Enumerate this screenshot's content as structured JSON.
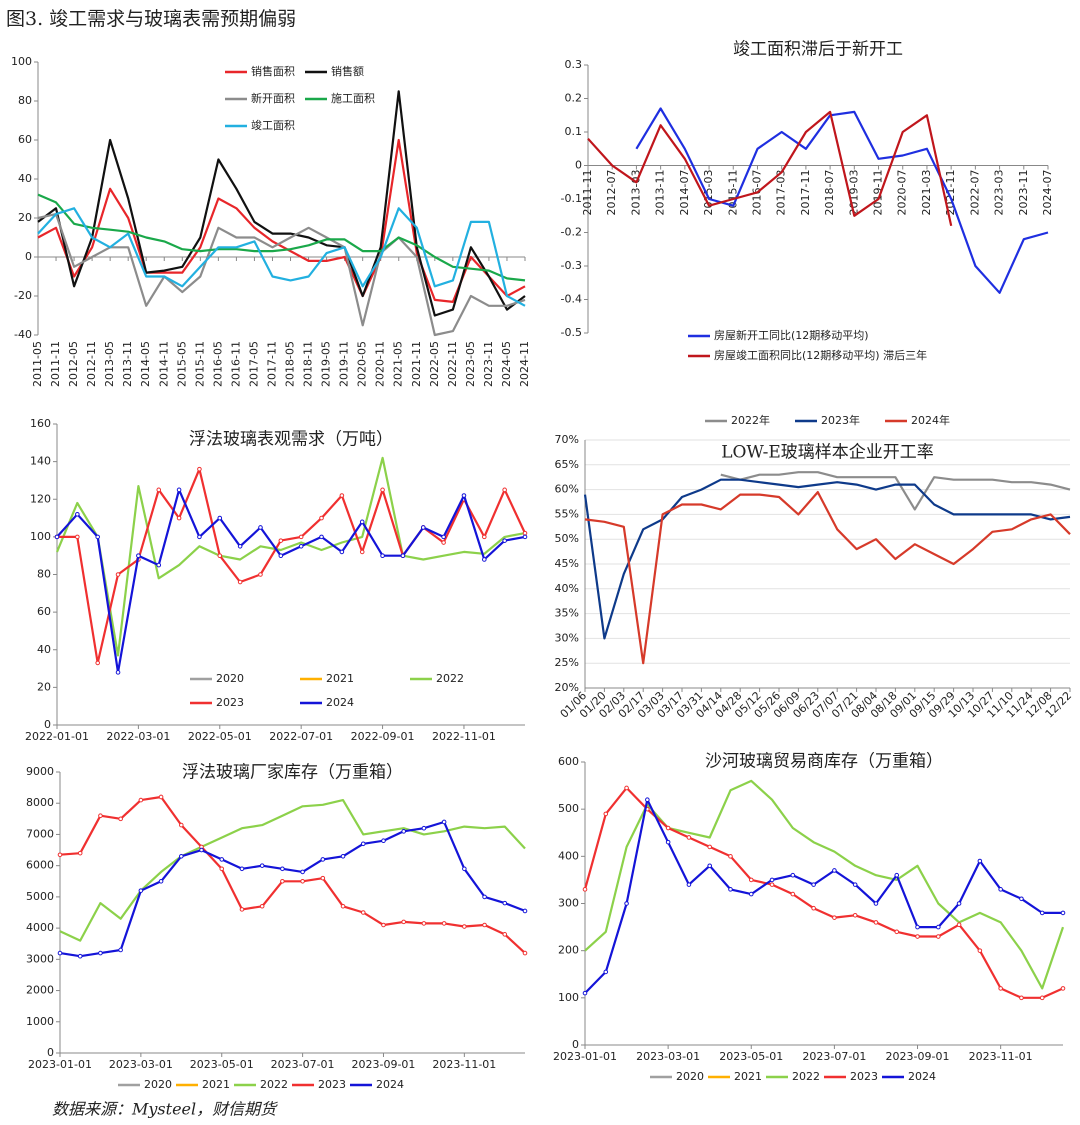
{
  "title": "图3. 竣工需求与玻璃表需预期偏弱",
  "source": "数据来源：Mysteel，财信期货",
  "chart_data": [
    {
      "type": "line",
      "categories": [
        "2011-05",
        "2011-11",
        "2012-05",
        "2012-11",
        "2013-05",
        "2013-11",
        "2014-05",
        "2014-11",
        "2015-05",
        "2015-11",
        "2016-05",
        "2016-11",
        "2017-05",
        "2017-11",
        "2018-05",
        "2018-11",
        "2019-05",
        "2019-11",
        "2020-05",
        "2020-11",
        "2021-05",
        "2021-11",
        "2022-05",
        "2022-11",
        "2023-05",
        "2023-11",
        "2024-05",
        "2024-11"
      ],
      "ylim": [
        -40,
        100
      ],
      "yticks": [
        -40,
        -20,
        0,
        20,
        40,
        60,
        80,
        100
      ],
      "legend": "upper center",
      "series": [
        {
          "name": "销售面积",
          "color": "#e8262a",
          "values": [
            10,
            15,
            -10,
            5,
            35,
            20,
            -8,
            -8,
            -8,
            5,
            30,
            25,
            15,
            8,
            3,
            -2,
            -2,
            0,
            -20,
            0,
            60,
            2,
            -22,
            -23,
            0,
            -10,
            -20,
            -15
          ]
        },
        {
          "name": "销售额",
          "color": "#111111",
          "values": [
            18,
            25,
            -15,
            10,
            60,
            30,
            -8,
            -7,
            -5,
            10,
            50,
            35,
            18,
            12,
            12,
            10,
            6,
            5,
            -20,
            5,
            85,
            5,
            -30,
            -27,
            5,
            -10,
            -27,
            -20
          ]
        },
        {
          "name": "新开面积",
          "color": "#8c8c8c",
          "values": [
            20,
            22,
            -5,
            0,
            5,
            5,
            -25,
            -10,
            -18,
            -10,
            15,
            10,
            10,
            5,
            10,
            15,
            10,
            5,
            -35,
            2,
            10,
            0,
            -40,
            -38,
            -20,
            -25,
            -25,
            -22
          ]
        },
        {
          "name": "施工面积",
          "color": "#1aa84a",
          "values": [
            32,
            28,
            17,
            15,
            14,
            13,
            10,
            8,
            4,
            3,
            4,
            4,
            3,
            3,
            4,
            6,
            9,
            9,
            3,
            3,
            10,
            6,
            0,
            -5,
            -6,
            -7,
            -11,
            -12
          ]
        },
        {
          "name": "竣工面积",
          "color": "#22b0e0",
          "values": [
            12,
            22,
            25,
            10,
            5,
            12,
            -10,
            -10,
            -15,
            -5,
            5,
            5,
            8,
            -10,
            -12,
            -10,
            2,
            5,
            -15,
            0,
            25,
            15,
            -15,
            -12,
            18,
            18,
            -20,
            -25
          ]
        }
      ]
    },
    {
      "type": "line",
      "title": "竣工面积滞后于新开工",
      "categories": [
        "2011-11",
        "2012-07",
        "2013-03",
        "2013-11",
        "2014-07",
        "2015-03",
        "2015-11",
        "2016-07",
        "2017-03",
        "2017-11",
        "2018-07",
        "2019-03",
        "2019-11",
        "2020-07",
        "2021-03",
        "2021-11",
        "2022-07",
        "2023-03",
        "2023-11",
        "2024-07"
      ],
      "ylim": [
        -0.5,
        0.3
      ],
      "yticks": [
        -0.5,
        -0.4,
        -0.3,
        -0.2,
        -0.1,
        0,
        0.1,
        0.2,
        0.3
      ],
      "legend": "lower center",
      "series": [
        {
          "name": "房屋新开工同比(12期移动平均)",
          "color": "#1f2fe0",
          "values": [
            null,
            null,
            0.05,
            0.17,
            0.05,
            -0.1,
            -0.12,
            0.05,
            0.1,
            0.05,
            0.15,
            0.16,
            0.02,
            0.03,
            0.05,
            -0.1,
            -0.3,
            -0.38,
            -0.22,
            -0.2
          ]
        },
        {
          "name": "房屋竣工面积同比(12期移动平均) 滞后三年",
          "color": "#c0161c",
          "values": [
            0.08,
            0.0,
            -0.05,
            0.12,
            0.02,
            -0.12,
            -0.1,
            -0.08,
            -0.02,
            0.1,
            0.16,
            -0.15,
            -0.1,
            0.1,
            0.15,
            -0.18,
            null,
            null,
            null,
            null
          ]
        }
      ]
    },
    {
      "type": "line",
      "title": "浮法玻璃表观需求（万吨）",
      "categories": [
        "2022-01-01",
        null,
        null,
        null,
        "2022-03-01",
        null,
        null,
        null,
        "2022-05-01",
        null,
        null,
        null,
        "2022-07-01",
        null,
        null,
        null,
        "2022-09-01",
        null,
        null,
        null,
        "2022-11-01",
        null,
        null,
        null
      ],
      "ylim": [
        0,
        160
      ],
      "yticks": [
        0,
        20,
        40,
        60,
        80,
        100,
        120,
        140,
        160
      ],
      "legend": "lower center",
      "series": [
        {
          "name": "2020",
          "color": "#a0a0a0",
          "values": [
            null,
            null,
            null,
            null,
            null,
            null,
            null,
            null,
            null,
            null,
            null,
            null,
            null,
            null,
            null,
            null,
            null,
            null,
            null,
            null,
            null,
            null,
            null,
            null
          ]
        },
        {
          "name": "2021",
          "color": "#ffb000",
          "values": [
            null,
            null,
            null,
            null,
            null,
            null,
            null,
            null,
            null,
            null,
            null,
            null,
            null,
            null,
            null,
            null,
            null,
            null,
            null,
            null,
            null,
            null,
            null,
            null
          ]
        },
        {
          "name": "2022",
          "color": "#8cd14a",
          "values": [
            92,
            118,
            100,
            37,
            127,
            78,
            85,
            95,
            90,
            88,
            95,
            93,
            97,
            93,
            97,
            100,
            142,
            90,
            88,
            90,
            92,
            91,
            100,
            102
          ]
        },
        {
          "name": "2023",
          "color": "#f03030",
          "marker": true,
          "values": [
            100,
            100,
            33,
            80,
            88,
            125,
            110,
            136,
            90,
            76,
            80,
            98,
            100,
            110,
            122,
            92,
            125,
            90,
            105,
            97,
            120,
            100,
            125,
            102
          ]
        },
        {
          "name": "2024",
          "color": "#1414d8",
          "marker": true,
          "values": [
            100,
            112,
            100,
            28,
            90,
            85,
            125,
            100,
            110,
            95,
            105,
            90,
            95,
            100,
            92,
            108,
            90,
            90,
            105,
            100,
            122,
            88,
            98,
            100
          ]
        }
      ]
    },
    {
      "type": "line",
      "title": "LOW-E玻璃样本企业开工率",
      "categories": [
        "01/06",
        "01/20",
        "02/03",
        "02/17",
        "03/03",
        "03/17",
        "03/31",
        "04/14",
        "04/28",
        "05/12",
        "05/26",
        "06/09",
        "06/23",
        "07/07",
        "07/21",
        "08/04",
        "08/18",
        "09/01",
        "09/15",
        "09/29",
        "10/13",
        "10/27",
        "11/10",
        "11/24",
        "12/08",
        "12/22"
      ],
      "ylim": [
        20,
        70
      ],
      "yticks": [
        {
          "value": 20,
          "label": "20%"
        },
        {
          "value": 25,
          "label": "25%"
        },
        {
          "value": 30,
          "label": "30%"
        },
        {
          "value": 35,
          "label": "35%"
        },
        {
          "value": 40,
          "label": "40%"
        },
        {
          "value": 45,
          "label": "45%"
        },
        {
          "value": 50,
          "label": "50%"
        },
        {
          "value": 55,
          "label": "55%"
        },
        {
          "value": 60,
          "label": "60%"
        },
        {
          "value": 65,
          "label": "65%"
        },
        {
          "value": 70,
          "label": "70%"
        }
      ],
      "grid": true,
      "legend": "upper center",
      "series": [
        {
          "name": "2022年",
          "color": "#8c8c8c",
          "values": [
            null,
            null,
            null,
            null,
            null,
            null,
            null,
            63,
            62,
            63,
            63,
            63.5,
            63.5,
            62.5,
            62.5,
            62.5,
            62.5,
            56,
            62.5,
            62,
            62,
            62,
            61.5,
            61.5,
            61,
            60
          ]
        },
        {
          "name": "2023年",
          "color": "#0e3a8a",
          "values": [
            59,
            30,
            43,
            52,
            54,
            58.5,
            60,
            62,
            62,
            61.5,
            61,
            60.5,
            61,
            61.5,
            61,
            60,
            61,
            61,
            57,
            55,
            55,
            55,
            55,
            55,
            54,
            54.5
          ]
        },
        {
          "name": "2024年",
          "color": "#d63a2a",
          "values": [
            54,
            53.5,
            52.5,
            25,
            55,
            57,
            57,
            56,
            59,
            59,
            58.5,
            55,
            59.5,
            52,
            48,
            50,
            46,
            49,
            47,
            45,
            48,
            51.5,
            52,
            54,
            55,
            51
          ]
        }
      ]
    },
    {
      "type": "line",
      "title": "浮法玻璃厂家库存（万重箱）",
      "categories": [
        "2023-01-01",
        null,
        null,
        null,
        "2023-03-01",
        null,
        null,
        null,
        "2023-05-01",
        null,
        null,
        null,
        "2023-07-01",
        null,
        null,
        null,
        "2023-09-01",
        null,
        null,
        null,
        "2023-11-01",
        null,
        null,
        null
      ],
      "ylim": [
        0,
        9000
      ],
      "yticks": [
        0,
        1000,
        2000,
        3000,
        4000,
        5000,
        6000,
        7000,
        8000,
        9000
      ],
      "legend": "lower center",
      "series": [
        {
          "name": "2020",
          "color": "#a0a0a0",
          "values": [
            null,
            null,
            null,
            null,
            null,
            null,
            null,
            null,
            null,
            null,
            null,
            null,
            null,
            null,
            null,
            null,
            null,
            null,
            null,
            null,
            null,
            null,
            null,
            null
          ]
        },
        {
          "name": "2021",
          "color": "#ffb000",
          "values": [
            null,
            null,
            null,
            null,
            null,
            null,
            null,
            null,
            null,
            null,
            null,
            null,
            null,
            null,
            null,
            null,
            null,
            null,
            null,
            null,
            null,
            null,
            null,
            null
          ]
        },
        {
          "name": "2022",
          "color": "#8cd14a",
          "values": [
            3900,
            3600,
            4800,
            4300,
            5200,
            5800,
            6300,
            6600,
            6900,
            7200,
            7300,
            7600,
            7900,
            7950,
            8100,
            7000,
            7100,
            7200,
            7000,
            7100,
            7250,
            7200,
            7250,
            6550
          ]
        },
        {
          "name": "2023",
          "color": "#f03030",
          "marker": true,
          "values": [
            6350,
            6400,
            7600,
            7500,
            8100,
            8200,
            7300,
            6600,
            5900,
            4600,
            4700,
            5500,
            5500,
            5600,
            4700,
            4500,
            4100,
            4200,
            4150,
            4150,
            4050,
            4100,
            3800,
            3200
          ]
        },
        {
          "name": "2024",
          "color": "#1414d8",
          "marker": true,
          "values": [
            3200,
            3100,
            3200,
            3300,
            5200,
            5500,
            6300,
            6500,
            6200,
            5900,
            6000,
            5900,
            5800,
            6200,
            6300,
            6700,
            6800,
            7100,
            7200,
            7400,
            5900,
            5000,
            4800,
            4550
          ]
        }
      ]
    },
    {
      "type": "line",
      "title": "沙河玻璃贸易商库存（万重箱）",
      "categories": [
        "2023-01-01",
        null,
        null,
        null,
        "2023-03-01",
        null,
        null,
        null,
        "2023-05-01",
        null,
        null,
        null,
        "2023-07-01",
        null,
        null,
        null,
        "2023-09-01",
        null,
        null,
        null,
        "2023-11-01",
        null,
        null,
        null
      ],
      "ylim": [
        0,
        600
      ],
      "yticks": [
        0,
        100,
        200,
        300,
        400,
        500,
        600
      ],
      "legend": "lower center",
      "series": [
        {
          "name": "2020",
          "color": "#a0a0a0",
          "values": [
            null,
            null,
            null,
            null,
            null,
            null,
            null,
            null,
            null,
            null,
            null,
            null,
            null,
            null,
            null,
            null,
            null,
            null,
            null,
            null,
            null,
            null,
            null,
            null
          ]
        },
        {
          "name": "2021",
          "color": "#ffb000",
          "values": [
            null,
            null,
            null,
            null,
            null,
            null,
            null,
            null,
            null,
            null,
            null,
            null,
            null,
            null,
            null,
            null,
            null,
            null,
            null,
            null,
            null,
            null,
            null,
            null
          ]
        },
        {
          "name": "2022",
          "color": "#8cd14a",
          "values": [
            200,
            240,
            420,
            510,
            460,
            450,
            440,
            540,
            560,
            520,
            460,
            430,
            410,
            380,
            360,
            350,
            380,
            300,
            260,
            280,
            260,
            200,
            120,
            250
          ]
        },
        {
          "name": "2023",
          "color": "#f03030",
          "marker": true,
          "values": [
            330,
            490,
            545,
            500,
            460,
            440,
            420,
            400,
            350,
            340,
            320,
            290,
            270,
            275,
            260,
            240,
            230,
            230,
            255,
            200,
            120,
            100,
            100,
            120
          ]
        },
        {
          "name": "2024",
          "color": "#1414d8",
          "marker": true,
          "values": [
            110,
            155,
            300,
            520,
            430,
            340,
            380,
            330,
            320,
            350,
            360,
            340,
            370,
            340,
            300,
            360,
            250,
            250,
            300,
            390,
            330,
            310,
            280,
            280
          ]
        }
      ]
    }
  ]
}
